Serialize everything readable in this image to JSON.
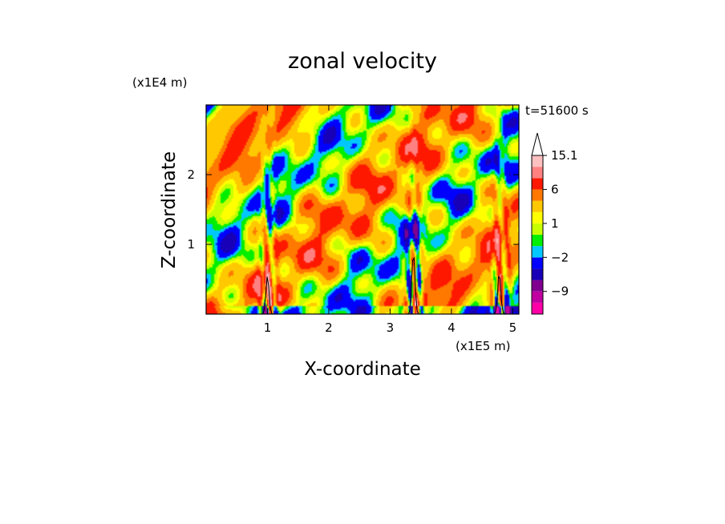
{
  "chart_data": {
    "type": "heatmap",
    "title": "zonal velocity",
    "xlabel": "X-coordinate",
    "ylabel": "Z-coordinate",
    "x_unit": "(x1E5 m)",
    "y_unit": "(x1E4 m)",
    "time_label": "t=51600 s",
    "xlim": [
      0,
      5.1
    ],
    "ylim": [
      0,
      3.0
    ],
    "x_ticks": [
      1,
      2,
      3,
      4,
      5
    ],
    "y_ticks": [
      1,
      2
    ],
    "x_tick_labels": [
      "1",
      "2",
      "3",
      "4",
      "5"
    ],
    "y_tick_labels": [
      "1",
      "2"
    ],
    "colorbar": {
      "levels": [
        -15.1,
        -12,
        -9,
        -6,
        -4,
        -2,
        -1,
        0,
        1,
        2,
        4,
        6,
        9,
        12,
        15.1
      ],
      "colors": [
        "#ff00a8",
        "#c000a0",
        "#800090",
        "#1800b8",
        "#0000ff",
        "#00c8ff",
        "#00ee00",
        "#c8ff00",
        "#ffff00",
        "#ffc800",
        "#ff7800",
        "#ff1800",
        "#ff8080",
        "#ffc0c0"
      ],
      "labels": [
        {
          "value": -9,
          "text": "−9"
        },
        {
          "value": -2,
          "text": "−2"
        },
        {
          "value": 1,
          "text": "1"
        },
        {
          "value": 6,
          "text": "6"
        },
        {
          "value": 15.1,
          "text": "15.1"
        }
      ],
      "extend": "max"
    },
    "mountains": [
      {
        "x": 1.0,
        "height": 0.55
      },
      {
        "x": 3.38,
        "height": 0.9
      },
      {
        "x": 4.78,
        "height": 0.6
      }
    ],
    "grid": false
  }
}
